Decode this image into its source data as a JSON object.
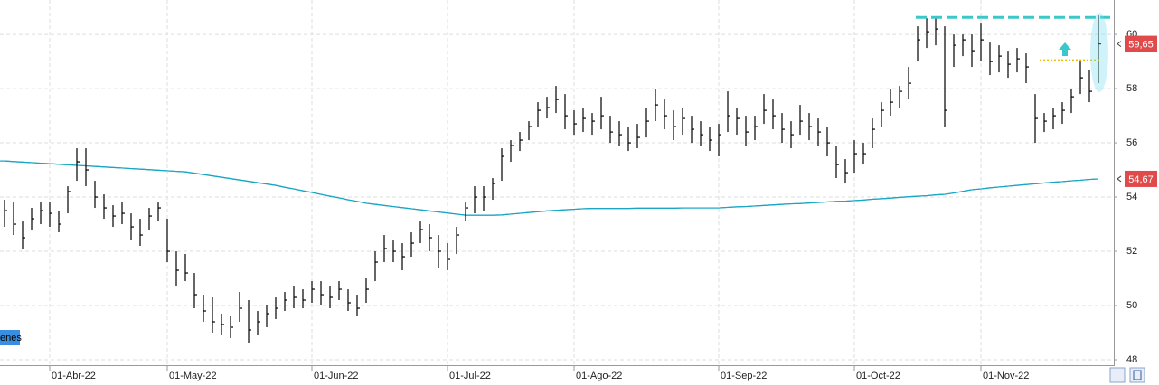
{
  "chart_data": {
    "type": "ohlc",
    "categories": [
      null,
      null,
      null,
      null,
      null,
      "01-Abr-22",
      null,
      null,
      null,
      null,
      null,
      null,
      null,
      null,
      null,
      null,
      null,
      null,
      "01-May-22",
      null,
      null,
      null,
      null,
      null,
      null,
      null,
      null,
      null,
      null,
      null,
      null,
      null,
      null,
      null,
      "01-Jun-22",
      null,
      null,
      null,
      null,
      null,
      null,
      null,
      null,
      null,
      null,
      null,
      null,
      null,
      null,
      "01-Jul-22",
      null,
      null,
      null,
      null,
      null,
      null,
      null,
      null,
      null,
      null,
      null,
      null,
      null,
      "01-Ago-22",
      null,
      null,
      null,
      null,
      null,
      null,
      null,
      null,
      null,
      null,
      null,
      null,
      null,
      null,
      null,
      "01-Sep-22",
      null,
      null,
      null,
      null,
      null,
      null,
      null,
      null,
      null,
      null,
      null,
      null,
      null,
      null,
      "01-Oct-22",
      null,
      null,
      null,
      null,
      null,
      null,
      null,
      null,
      null,
      null,
      null,
      null,
      null,
      "01-Nov-22",
      null,
      null,
      null,
      null,
      null,
      null,
      null,
      null,
      null,
      null,
      null,
      null,
      null
    ],
    "high": [
      53.9,
      53.8,
      53.1,
      53.6,
      53.8,
      53.8,
      53.5,
      54.4,
      55.8,
      55.8,
      54.6,
      54.1,
      53.7,
      53.8,
      53.4,
      53.2,
      53.6,
      53.8,
      53.2,
      52.0,
      51.9,
      51.2,
      50.4,
      50.3,
      49.7,
      49.6,
      50.5,
      50.2,
      49.8,
      50.0,
      50.3,
      50.5,
      50.7,
      50.6,
      50.9,
      50.9,
      50.7,
      50.9,
      50.6,
      50.4,
      51.0,
      52.0,
      52.6,
      52.4,
      52.3,
      52.7,
      53.1,
      53.0,
      52.6,
      52.3,
      52.9,
      53.8,
      54.4,
      54.4,
      54.7,
      55.8,
      56.1,
      56.4,
      56.8,
      57.5,
      57.7,
      58.1,
      57.8,
      57.2,
      57.3,
      57.1,
      57.7,
      57.0,
      56.8,
      56.6,
      56.7,
      57.3,
      58.0,
      57.6,
      57.2,
      57.3,
      57.0,
      56.8,
      56.6,
      56.7,
      57.9,
      57.3,
      57.0,
      57.0,
      57.8,
      57.6,
      57.1,
      56.8,
      57.4,
      57.1,
      56.9,
      56.6,
      55.9,
      55.4,
      56.1,
      56.0,
      56.9,
      57.5,
      58.0,
      58.1,
      58.8,
      60.3,
      60.6,
      60.6,
      60.3,
      60.0,
      60.0,
      60.0,
      60.4,
      59.7,
      59.6,
      59.4,
      59.5,
      59.3,
      57.8,
      57.1,
      57.3,
      57.5,
      58.0,
      59.0,
      58.7,
      60.7
    ],
    "low": [
      52.9,
      52.6,
      52.1,
      52.8,
      53.0,
      52.9,
      52.7,
      53.4,
      54.6,
      54.4,
      53.6,
      53.2,
      52.9,
      53.0,
      52.4,
      52.2,
      52.8,
      53.1,
      51.6,
      50.7,
      50.9,
      49.9,
      49.4,
      49.0,
      48.9,
      48.8,
      49.4,
      48.6,
      48.9,
      49.2,
      49.5,
      49.8,
      49.9,
      49.9,
      50.1,
      50.0,
      49.9,
      50.2,
      49.8,
      49.6,
      50.1,
      50.9,
      51.6,
      51.6,
      51.3,
      51.8,
      52.3,
      52.0,
      51.4,
      51.3,
      51.9,
      53.1,
      53.4,
      53.5,
      53.9,
      54.6,
      55.3,
      55.7,
      56.1,
      56.6,
      56.9,
      57.1,
      56.5,
      56.3,
      56.4,
      56.3,
      56.5,
      56.0,
      55.9,
      55.7,
      55.8,
      56.2,
      56.8,
      56.5,
      56.1,
      56.3,
      56.0,
      55.9,
      55.7,
      55.5,
      56.4,
      56.3,
      55.9,
      56.1,
      56.7,
      56.5,
      56.0,
      55.8,
      56.3,
      56.1,
      55.9,
      55.5,
      54.7,
      54.5,
      54.9,
      55.2,
      55.8,
      56.6,
      57.0,
      57.3,
      57.6,
      59.0,
      59.5,
      59.6,
      56.6,
      58.8,
      59.2,
      58.8,
      59.0,
      58.5,
      58.6,
      58.4,
      58.6,
      58.2,
      56.0,
      56.4,
      56.5,
      56.7,
      57.1,
      57.8,
      57.5,
      58.2
    ],
    "close": [
      53.5,
      53.0,
      52.5,
      53.2,
      53.5,
      53.4,
      53.0,
      54.2,
      55.3,
      55.0,
      54.0,
      53.6,
      53.3,
      53.4,
      52.9,
      52.6,
      53.3,
      53.6,
      52.0,
      51.3,
      51.2,
      50.4,
      49.8,
      49.4,
      49.3,
      49.2,
      49.9,
      49.1,
      49.4,
      49.7,
      49.9,
      50.2,
      50.3,
      50.2,
      50.6,
      50.4,
      50.3,
      50.6,
      50.1,
      49.9,
      50.6,
      51.6,
      52.1,
      52.0,
      51.8,
      52.3,
      52.8,
      52.5,
      52.0,
      51.7,
      52.6,
      53.6,
      54.0,
      54.0,
      54.5,
      55.5,
      55.9,
      56.1,
      56.6,
      57.2,
      57.3,
      57.6,
      57.0,
      56.7,
      56.9,
      56.8,
      57.0,
      56.4,
      56.3,
      56.0,
      56.2,
      56.8,
      57.4,
      57.0,
      56.6,
      56.9,
      56.5,
      56.3,
      56.1,
      56.3,
      57.0,
      56.9,
      56.4,
      56.6,
      57.2,
      57.0,
      56.5,
      56.3,
      56.8,
      56.6,
      56.4,
      56.0,
      55.2,
      54.9,
      55.6,
      55.6,
      56.5,
      57.2,
      57.5,
      57.9,
      58.2,
      59.8,
      60.1,
      60.2,
      57.2,
      59.6,
      59.8,
      59.4,
      59.8,
      59.0,
      59.2,
      58.9,
      59.1,
      58.8,
      56.9,
      56.8,
      57.0,
      57.2,
      57.7,
      58.4,
      57.9,
      59.65
    ],
    "bar_color": "#000000",
    "ma": {
      "color": "#1aa6c4",
      "values": [
        55.33,
        55.31,
        55.29,
        55.27,
        55.25,
        55.23,
        55.21,
        55.19,
        55.17,
        55.15,
        55.13,
        55.11,
        55.09,
        55.07,
        55.05,
        55.03,
        55.01,
        54.99,
        54.97,
        54.95,
        54.93,
        54.88,
        54.83,
        54.78,
        54.73,
        54.68,
        54.63,
        54.58,
        54.53,
        54.48,
        54.43,
        54.36,
        54.3,
        54.23,
        54.17,
        54.1,
        54.03,
        53.97,
        53.9,
        53.84,
        53.77,
        53.73,
        53.69,
        53.65,
        53.61,
        53.57,
        53.53,
        53.49,
        53.45,
        53.41,
        53.37,
        53.33,
        53.33,
        53.33,
        53.33,
        53.34,
        53.37,
        53.4,
        53.43,
        53.46,
        53.49,
        53.51,
        53.53,
        53.55,
        53.57,
        53.58,
        53.58,
        53.58,
        53.58,
        53.58,
        53.59,
        53.59,
        53.59,
        53.59,
        53.59,
        53.6,
        53.6,
        53.6,
        53.6,
        53.6,
        53.62,
        53.64,
        53.65,
        53.67,
        53.69,
        53.71,
        53.73,
        53.75,
        53.76,
        53.78,
        53.8,
        53.82,
        53.84,
        53.85,
        53.87,
        53.89,
        53.92,
        53.94,
        53.96,
        53.99,
        54.01,
        54.03,
        54.05,
        54.08,
        54.1,
        54.15,
        54.21,
        54.27,
        54.3,
        54.34,
        54.37,
        54.4,
        54.43,
        54.46,
        54.49,
        54.52,
        54.55,
        54.57,
        54.6,
        54.62,
        54.65,
        54.67
      ]
    },
    "price_labels": [
      {
        "value": 59.65,
        "label": "59,65",
        "color": "#e04a4a"
      },
      {
        "value": 54.67,
        "label": "54,67",
        "color": "#e04a4a"
      }
    ],
    "annotations": [
      {
        "value": 60.63,
        "color": "#3cc8c8",
        "style": "dashed"
      },
      {
        "value": 59.05,
        "color": "#f0c000",
        "style": "dotted"
      }
    ],
    "legend_label": "enes",
    "ylim": [
      47.8,
      61.27
    ],
    "yticks": [
      48,
      50,
      52,
      54,
      56,
      58,
      60
    ],
    "grid": true
  }
}
